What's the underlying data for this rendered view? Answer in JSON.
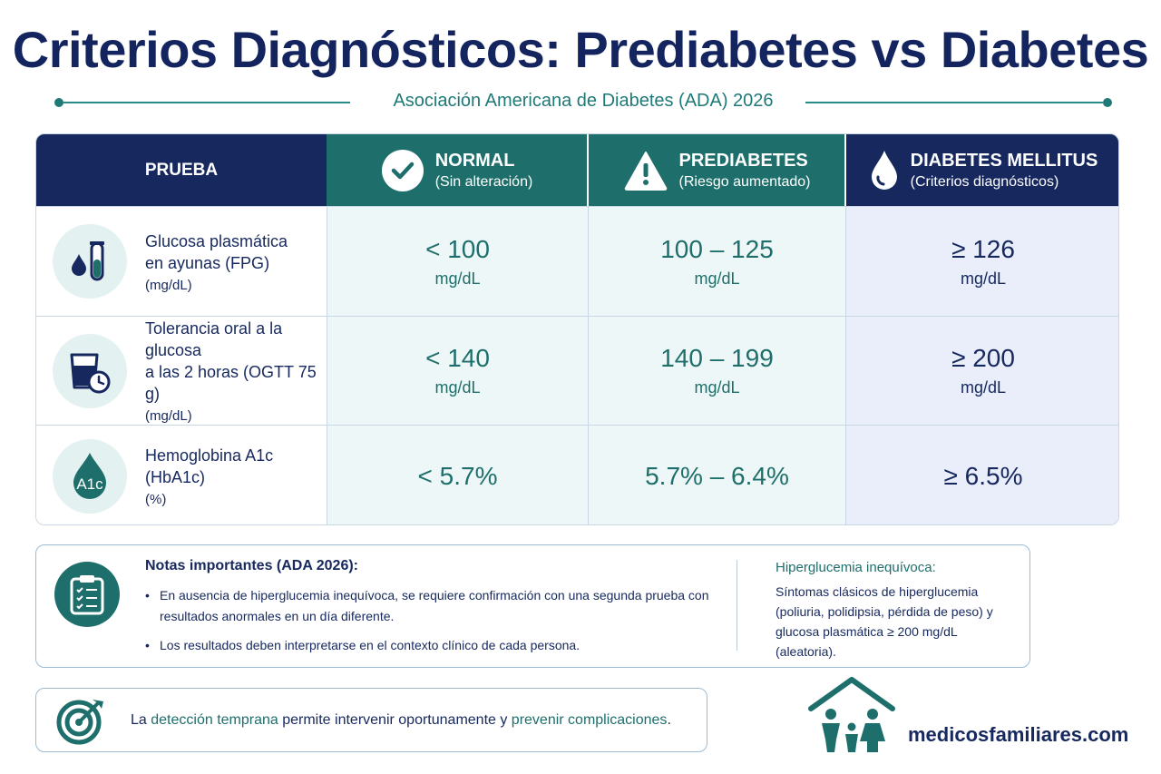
{
  "title": "Criterios Diagnósticos: Prediabetes vs Diabetes",
  "subtitle": "Asociación Americana de Diabetes (ADA) 2026",
  "colors": {
    "navy": "#17285f",
    "teal": "#1e6f6c",
    "light_teal": "#eef7f7",
    "light_blue": "#e9eefa"
  },
  "table": {
    "headers": {
      "test": "PRUEBA",
      "normal": {
        "title": "NORMAL",
        "subtitle": "(Sin alteración)",
        "icon": "check-circle-icon"
      },
      "prediabetes": {
        "title": "PREDIABETES",
        "subtitle": "(Riesgo aumentado)",
        "icon": "warning-triangle-icon"
      },
      "diabetes": {
        "title": "DIABETES MELLITUS",
        "subtitle": "(Criterios diagnósticos)",
        "icon": "blood-drop-icon"
      }
    },
    "rows": [
      {
        "icon": "blood-drop-test-tube-icon",
        "name_line1": "Glucosa plasmática",
        "name_line2": "en ayunas (FPG)",
        "unit_label": "(mg/dL)",
        "normal": "< 100",
        "prediabetes": "100 – 125",
        "diabetes": "≥ 126",
        "unit": "mg/dL"
      },
      {
        "icon": "glass-clock-icon",
        "name_line1": "Tolerancia oral a la glucosa",
        "name_line2": "a las 2 horas (OGTT 75 g)",
        "unit_label": "(mg/dL)",
        "normal": "< 140",
        "prediabetes": "140 – 199",
        "diabetes": "≥ 200",
        "unit": "mg/dL"
      },
      {
        "icon": "a1c-drop-icon",
        "icon_text": "A1c",
        "name_line1": "Hemoglobina A1c",
        "name_line2": "(HbA1c)",
        "unit_label": "(%)",
        "normal": "< 5.7%",
        "prediabetes": "5.7% – 6.4%",
        "diabetes": "≥ 6.5%"
      }
    ]
  },
  "notes": {
    "icon": "clipboard-checklist-icon",
    "title": "Notas importantes (ADA 2026):",
    "items": [
      "En ausencia de hiperglucemia inequívoca, se requiere confirmación con una segunda prueba con resultados anormales en un día diferente.",
      "Los resultados deben interpretarse en el contexto clínico de cada persona."
    ],
    "hyper_title": "Hiperglucemia inequívoca:",
    "hyper_text": "Síntomas clásicos de hiperglucemia (poliuria, polidipsia, pérdida de peso) y glucosa plasmática ≥ 200 mg/dL (aleatoria)."
  },
  "tip": {
    "icon": "target-icon",
    "part1": "La ",
    "highlight1": "detección temprana",
    "part2": " permite intervenir oportunamente y ",
    "highlight2": "prevenir complicaciones",
    "part3": "."
  },
  "brand": {
    "icon": "family-house-icon",
    "name": "medicosfamiliares.com"
  }
}
